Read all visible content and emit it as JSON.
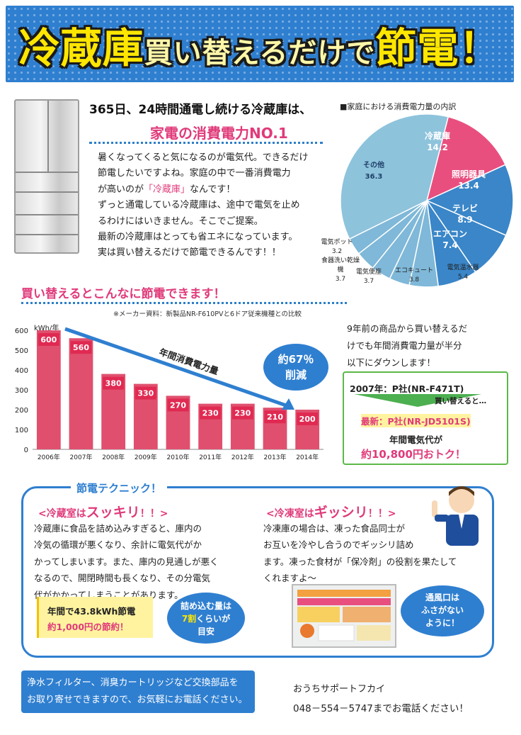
{
  "banner": {
    "part1": "冷蔵庫",
    "part2": "買い替えるだけで",
    "part3": "節電！"
  },
  "intro": {
    "title": "365日、24時間通電し続ける冷蔵庫は、",
    "subtitle": "家電の消費電力NO.1",
    "lines": [
      "暑くなってくると気になるのが電気代。できるだけ",
      "節電したいですよね。家庭の中で一番消費電力",
      "が高いのが",
      "「冷蔵庫」",
      "なんです！",
      "ずっと通電している冷蔵庫は、途中で電気を止め",
      "るわけにはいきません。そこでご提案。",
      "最新の冷蔵庫はとっても省エネになっています。",
      "実は買い替えるだけで節電できるんです！！"
    ]
  },
  "pie": {
    "title": "■家庭における消費電力量の内訳",
    "slices": [
      {
        "label": "冷蔵庫",
        "value": 14.2,
        "color": "#e84f7f"
      },
      {
        "label": "照明器具",
        "value": 13.4,
        "color": "#3a86c8"
      },
      {
        "label": "テレビ",
        "value": 8.9,
        "color": "#3a86c8"
      },
      {
        "label": "エアコン",
        "value": 7.4,
        "color": "#3a86c8"
      },
      {
        "label": "電気温水器",
        "value": 5.4,
        "color": "#7fb8d8"
      },
      {
        "label": "エコキュート",
        "value": 3.8,
        "color": "#7fb8d8"
      },
      {
        "label": "電気便座",
        "value": 3.7,
        "color": "#7fb8d8"
      },
      {
        "label": "食器洗い乾燥機",
        "value": 3.7,
        "color": "#7fb8d8"
      },
      {
        "label": "電気ポット",
        "value": 3.2,
        "color": "#7fb8d8"
      },
      {
        "label": "その他",
        "value": 36.3,
        "color": "#8ec3dc"
      }
    ],
    "labels": {
      "fridge": "冷蔵庫",
      "fridge_v": "14.2",
      "light": "照明器具",
      "light_v": "13.4",
      "tv": "テレビ",
      "tv_v": "8.9",
      "ac": "エアコン",
      "ac_v": "7.4",
      "heater": "電気温水器",
      "heater_v": "5.4",
      "eco": "エコキュート",
      "eco_v": "3.8",
      "toilet": "電気便座",
      "toilet_v": "3.7",
      "dish1": "食器洗い乾燥",
      "dish2": "機",
      "dish_v": "3.7",
      "pot": "電気ポット",
      "pot_v": "3.2",
      "other": "その他",
      "other_v": "36.3"
    }
  },
  "section2": {
    "title": "買い替えるとこんなに節電できます！",
    "note": "※メーカー資料：新製品NR-F610PVと6ドア従来機種との比較"
  },
  "chart_data": {
    "type": "bar",
    "ylabel": "kWh/年",
    "categories": [
      "2006年",
      "2007年",
      "2008年",
      "2009年",
      "2010年",
      "2011年",
      "2012年",
      "2013年",
      "2014年"
    ],
    "values": [
      600,
      560,
      380,
      330,
      270,
      230,
      230,
      210,
      200
    ],
    "ylim": [
      0,
      600
    ],
    "yticks": [
      0,
      100,
      200,
      300,
      400,
      500,
      600
    ],
    "arrow_label": "年間消費電力量",
    "badge1": "約67％",
    "badge2": "削減",
    "bar_color": "#e0506e",
    "label_box_color": "#e02a52"
  },
  "replace": {
    "lines": [
      "9年前の商品から買い替えるだ",
      "けでも年間消費電力量が半分",
      "以下にダウンします！"
    ]
  },
  "compare": {
    "old": "2007年：P社(NR-F471T)",
    "arrow": "買い替えると…",
    "new": "最新：P社(NR-JD5101S)",
    "cost_label": "年間電気代が",
    "cost_value": "約10,800円おトク！"
  },
  "technique": {
    "title": "節電テクニック！",
    "left_head_a": "<冷蔵室は",
    "left_head_b": "スッキリ",
    "left_head_c": "！！>",
    "left_lines": [
      "冷蔵庫に食品を詰め込みすぎると、庫内の",
      "冷気の循環が悪くなり、余計に電気代がか",
      "かってしまいます。また、庫内の見通しが悪く",
      "なるので、開閉時間も長くなり、その分電気",
      "代がかかってしまうことがあります。"
    ],
    "save1": "年間で43.8kWh節電",
    "save2": "約1,000円の節約！",
    "bubble1": "詰め込む量は",
    "bubble2": "7割",
    "bubble3": "くらいが",
    "bubble4": "目安",
    "right_head_a": "<冷凍室は",
    "right_head_b": "ギッシリ",
    "right_head_c": "！！>",
    "right_lines": [
      "冷凍庫の場合は、凍った食品同士が",
      "お互いを冷やし合うのでギッシリ詰め",
      "ます。凍った食材が「保冷剤」の役割を果たして",
      "くれますよ～"
    ],
    "vent1": "通風口は",
    "vent2": "ふさがない",
    "vent3": "ように！"
  },
  "footer": {
    "line1": "浄水フィルター、消臭カートリッジなど交換部品を",
    "line2": "お取り寄せできますので、お気軽にお電話ください。",
    "company": "おうちサポートフカイ",
    "phone": "048－554－5747までお電話ください！"
  }
}
